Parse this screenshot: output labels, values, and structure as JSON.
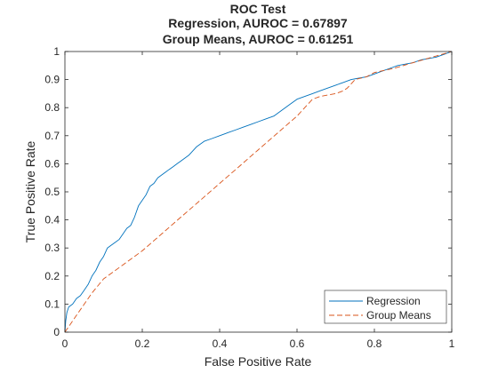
{
  "chart_data": {
    "type": "line",
    "title": [
      "ROC Test",
      "Regression, AUROC = 0.67897",
      "Group Means, AUROC = 0.61251"
    ],
    "xlabel": "False Positive Rate",
    "ylabel": "True Positive Rate",
    "xlim": [
      0,
      1
    ],
    "ylim": [
      0,
      1
    ],
    "xticks": [
      0,
      0.2,
      0.4,
      0.6,
      0.8,
      1
    ],
    "xtick_labels": [
      "0",
      "0.2",
      "0.4",
      "0.6",
      "0.8",
      "1"
    ],
    "yticks": [
      0,
      0.1,
      0.2,
      0.3,
      0.4,
      0.5,
      0.6,
      0.7,
      0.8,
      0.9,
      1
    ],
    "ytick_labels": [
      "0",
      "0.1",
      "0.2",
      "0.3",
      "0.4",
      "0.5",
      "0.6",
      "0.7",
      "0.8",
      "0.9",
      "1"
    ],
    "grid": false,
    "legend_position": "bottom-right",
    "series": [
      {
        "name": "Regression",
        "color": "#0072BD",
        "style": "solid",
        "x": [
          0,
          0.002,
          0.005,
          0.01,
          0.02,
          0.03,
          0.04,
          0.05,
          0.06,
          0.07,
          0.08,
          0.09,
          0.1,
          0.11,
          0.12,
          0.13,
          0.14,
          0.15,
          0.16,
          0.17,
          0.18,
          0.19,
          0.2,
          0.21,
          0.22,
          0.23,
          0.24,
          0.25,
          0.26,
          0.27,
          0.28,
          0.29,
          0.3,
          0.32,
          0.34,
          0.36,
          0.38,
          0.4,
          0.42,
          0.44,
          0.46,
          0.48,
          0.5,
          0.52,
          0.54,
          0.56,
          0.58,
          0.6,
          0.62,
          0.64,
          0.66,
          0.68,
          0.7,
          0.72,
          0.74,
          0.76,
          0.78,
          0.8,
          0.82,
          0.84,
          0.86,
          0.88,
          0.9,
          0.92,
          0.94,
          0.96,
          0.98,
          1
        ],
        "y": [
          0,
          0.04,
          0.07,
          0.09,
          0.1,
          0.12,
          0.13,
          0.15,
          0.17,
          0.2,
          0.22,
          0.25,
          0.27,
          0.3,
          0.31,
          0.32,
          0.33,
          0.35,
          0.37,
          0.38,
          0.41,
          0.45,
          0.47,
          0.49,
          0.52,
          0.53,
          0.55,
          0.56,
          0.57,
          0.58,
          0.59,
          0.6,
          0.61,
          0.63,
          0.66,
          0.68,
          0.69,
          0.7,
          0.71,
          0.72,
          0.73,
          0.74,
          0.75,
          0.76,
          0.77,
          0.79,
          0.81,
          0.83,
          0.84,
          0.85,
          0.86,
          0.87,
          0.88,
          0.89,
          0.9,
          0.905,
          0.91,
          0.92,
          0.93,
          0.94,
          0.95,
          0.955,
          0.96,
          0.97,
          0.975,
          0.98,
          0.99,
          1
        ]
      },
      {
        "name": "Group Means",
        "color": "#D95319",
        "style": "dashed",
        "x": [
          0,
          0.01,
          0.02,
          0.03,
          0.05,
          0.07,
          0.1,
          0.15,
          0.2,
          0.25,
          0.3,
          0.35,
          0.4,
          0.45,
          0.5,
          0.55,
          0.6,
          0.62,
          0.64,
          0.66,
          0.68,
          0.7,
          0.72,
          0.73,
          0.75,
          0.78,
          0.8,
          0.85,
          0.9,
          0.95,
          1
        ],
        "y": [
          0,
          0.02,
          0.04,
          0.06,
          0.1,
          0.14,
          0.19,
          0.24,
          0.29,
          0.35,
          0.41,
          0.47,
          0.53,
          0.59,
          0.65,
          0.71,
          0.77,
          0.8,
          0.83,
          0.84,
          0.845,
          0.85,
          0.86,
          0.87,
          0.9,
          0.91,
          0.925,
          0.94,
          0.96,
          0.98,
          1
        ]
      }
    ]
  }
}
